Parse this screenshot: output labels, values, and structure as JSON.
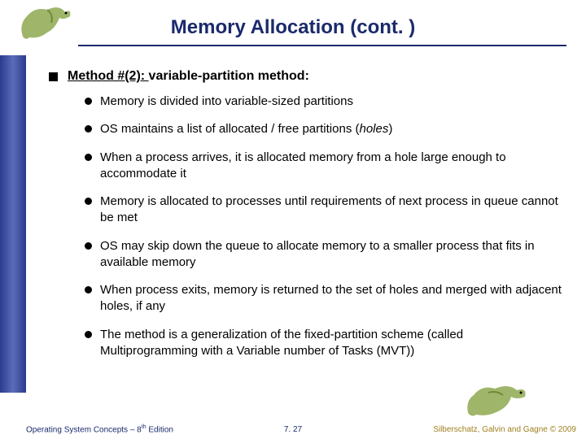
{
  "title": "Memory Allocation (cont. )",
  "heading": {
    "underlined": "Method #(2): ",
    "rest": "variable-partition method:"
  },
  "bullets": [
    {
      "parts": [
        {
          "t": "Memory is divided into variable-sized partitions"
        }
      ]
    },
    {
      "parts": [
        {
          "t": "OS maintains a list of allocated / free partitions ("
        },
        {
          "t": "holes",
          "i": true
        },
        {
          "t": ")"
        }
      ]
    },
    {
      "parts": [
        {
          "t": "When a process arrives, it is allocated memory from a hole large enough to accommodate it"
        }
      ]
    },
    {
      "parts": [
        {
          "t": "Memory is allocated to processes until requirements of next process in queue cannot be met"
        }
      ]
    },
    {
      "parts": [
        {
          "t": "OS may skip down the queue to allocate memory to a smaller process that fits in available memory"
        }
      ]
    },
    {
      "parts": [
        {
          "t": "When process exits, memory is returned to the set of holes and merged with adjacent holes, if any"
        }
      ]
    },
    {
      "parts": [
        {
          "t": "The method is a generalization of the fixed-partition scheme (called Multiprogramming with a Variable number of Tasks (MVT))"
        }
      ]
    }
  ],
  "footer": {
    "left_pre": "Operating System Concepts – 8",
    "left_sup": "th",
    "left_post": " Edition",
    "center": "7. 27",
    "right": "Silberschatz, Galvin and Gagne © 2009"
  },
  "colors": {
    "title": "#1a2a6c",
    "sidebar_grad_a": "#2b3a8f",
    "sidebar_grad_b": "#5a6db8",
    "dino_body": "#9fb66a",
    "dino_stripe": "#6f8a3a",
    "foot_right": "#a08020"
  }
}
